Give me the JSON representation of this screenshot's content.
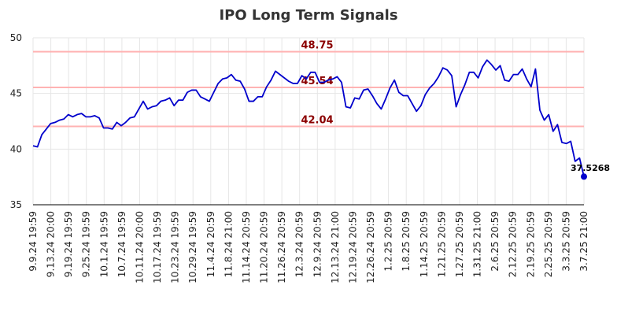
{
  "chart_data": {
    "type": "line",
    "title": "IPO Long Term Signals",
    "xlabel": "",
    "ylabel": "",
    "ylim": [
      35,
      50
    ],
    "yticks": [
      35,
      40,
      45,
      50
    ],
    "grid": true,
    "colors": {
      "line": "#0000cc",
      "reference_line": "#ffb3b3",
      "reference_label": "#8b0000",
      "grid": "#e6e6e6"
    },
    "x_tick_labels": [
      "9.9.24 19:59",
      "9.13.24 20:00",
      "9.19.24 19:59",
      "9.25.24 19:59",
      "10.1.24 19:59",
      "10.7.24 19:59",
      "10.11.24 20:00",
      "10.17.24 19:59",
      "10.23.24 19:59",
      "10.29.24 19:59",
      "11.4.24 20:59",
      "11.8.24 21:00",
      "11.14.24 20:59",
      "11.20.24 20:59",
      "11.26.24 20:59",
      "12.3.24 20:59",
      "12.9.24 20:59",
      "12.13.24 21:00",
      "12.19.24 20:59",
      "12.26.24 20:59",
      "1.2.25 20:59",
      "1.8.25 20:59",
      "1.14.25 20:59",
      "1.21.25 20:59",
      "1.27.25 20:59",
      "1.31.25 21:00",
      "2.6.25 20:59",
      "2.12.25 20:59",
      "2.19.25 20:59",
      "2.25.25 20:59",
      "3.3.25 20:59",
      "3.7.25 21:00"
    ],
    "reference_lines": [
      {
        "value": 48.75,
        "label": "48.75"
      },
      {
        "value": 45.54,
        "label": "45.54"
      },
      {
        "value": 42.04,
        "label": "42.04"
      }
    ],
    "last_value_label": "37.5268",
    "series": [
      {
        "values": [
          40.3,
          40.2,
          41.3,
          41.8,
          42.3,
          42.4,
          42.6,
          42.7,
          43.1,
          42.9,
          43.1,
          43.2,
          42.9,
          42.9,
          43.0,
          42.8,
          41.9,
          41.9,
          41.8,
          42.4,
          42.1,
          42.4,
          42.8,
          42.9,
          43.6,
          44.3,
          43.6,
          43.8,
          43.9,
          44.3,
          44.4,
          44.6,
          43.9,
          44.4,
          44.4,
          45.1,
          45.3,
          45.3,
          44.7,
          44.5,
          44.3,
          45.1,
          45.9,
          46.3,
          46.4,
          46.7,
          46.2,
          46.1,
          45.4,
          44.3,
          44.3,
          44.7,
          44.7,
          45.6,
          46.2,
          47.0,
          46.7,
          46.4,
          46.1,
          45.9,
          45.9,
          46.6,
          46.3,
          46.9,
          46.9,
          46.0,
          46.0,
          46.2,
          46.3,
          46.5,
          46.0,
          43.8,
          43.7,
          44.6,
          44.5,
          45.3,
          45.4,
          44.8,
          44.1,
          43.6,
          44.5,
          45.5,
          46.2,
          45.1,
          44.8,
          44.8,
          44.1,
          43.4,
          43.9,
          44.9,
          45.5,
          45.9,
          46.5,
          47.3,
          47.1,
          46.6,
          43.8,
          44.9,
          45.8,
          46.9,
          46.9,
          46.4,
          47.4,
          48.0,
          47.6,
          47.1,
          47.5,
          46.2,
          46.1,
          46.7,
          46.7,
          47.2,
          46.3,
          45.6,
          47.2,
          43.5,
          42.6,
          43.1,
          41.6,
          42.2,
          40.6,
          40.5,
          40.7,
          38.9,
          39.2,
          37.53
        ]
      }
    ]
  }
}
